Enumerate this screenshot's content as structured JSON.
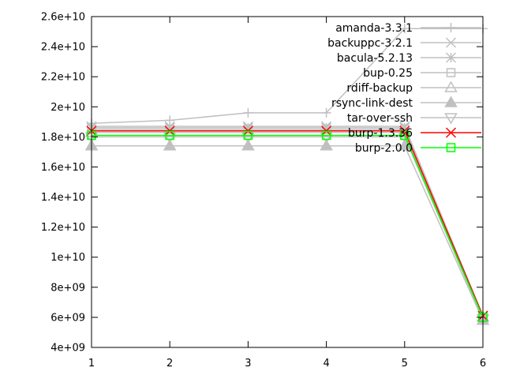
{
  "chart_data": {
    "type": "line",
    "title": "",
    "xlabel": "",
    "ylabel": "",
    "x": [
      1,
      2,
      3,
      4,
      5,
      6
    ],
    "xlim": [
      1,
      6
    ],
    "ylim": [
      4000000000,
      26000000000
    ],
    "x_ticks": [
      1,
      2,
      3,
      4,
      5,
      6
    ],
    "x_tick_labels": [
      "1",
      "2",
      "3",
      "4",
      "5",
      "6"
    ],
    "y_ticks": [
      4000000000,
      6000000000,
      8000000000,
      10000000000,
      12000000000,
      14000000000,
      16000000000,
      18000000000,
      20000000000,
      22000000000,
      24000000000,
      26000000000
    ],
    "y_tick_labels": [
      "4e+09",
      "6e+09",
      "8e+09",
      "1e+10",
      "1.2e+10",
      "1.4e+10",
      "1.6e+10",
      "1.8e+10",
      "2e+10",
      "2.2e+10",
      "2.4e+10",
      "2.6e+10"
    ],
    "grid": false,
    "legend_position": "top-right",
    "series": [
      {
        "name": "amanda-3.3.1",
        "values": [
          18900000000,
          19100000000,
          19600000000,
          19600000000,
          25200000000,
          25200000000
        ],
        "color": "#c0c0c0",
        "marker": "plus"
      },
      {
        "name": "backuppc-3.2.1",
        "values": [
          18700000000,
          18700000000,
          18700000000,
          18700000000,
          18700000000,
          6100000000
        ],
        "color": "#c0c0c0",
        "marker": "cross"
      },
      {
        "name": "bacula-5.2.13",
        "values": [
          18600000000,
          18600000000,
          18600000000,
          18600000000,
          18600000000,
          6000000000
        ],
        "color": "#c0c0c0",
        "marker": "star"
      },
      {
        "name": "bup-0.25",
        "values": [
          18500000000,
          18500000000,
          18500000000,
          18500000000,
          18500000000,
          5900000000
        ],
        "color": "#c0c0c0",
        "marker": "square"
      },
      {
        "name": "rdiff-backup",
        "values": [
          18300000000,
          18300000000,
          18300000000,
          18300000000,
          18300000000,
          6000000000
        ],
        "color": "#c0c0c0",
        "marker": "triangle"
      },
      {
        "name": "rsync-link-dest",
        "values": [
          17400000000,
          17400000000,
          17400000000,
          17400000000,
          17400000000,
          5800000000
        ],
        "color": "#c0c0c0",
        "marker": "triangle-filled"
      },
      {
        "name": "tar-over-ssh",
        "values": [
          18000000000,
          18000000000,
          18000000000,
          18000000000,
          18000000000,
          5900000000
        ],
        "color": "#c0c0c0",
        "marker": "triangle-down"
      },
      {
        "name": "burp-1.3.36",
        "values": [
          18400000000,
          18400000000,
          18400000000,
          18400000000,
          18400000000,
          6100000000
        ],
        "color": "#ff0000",
        "marker": "cross"
      },
      {
        "name": "burp-2.0.0",
        "values": [
          18100000000,
          18100000000,
          18100000000,
          18100000000,
          18100000000,
          6000000000
        ],
        "color": "#00ff00",
        "marker": "square"
      }
    ]
  }
}
